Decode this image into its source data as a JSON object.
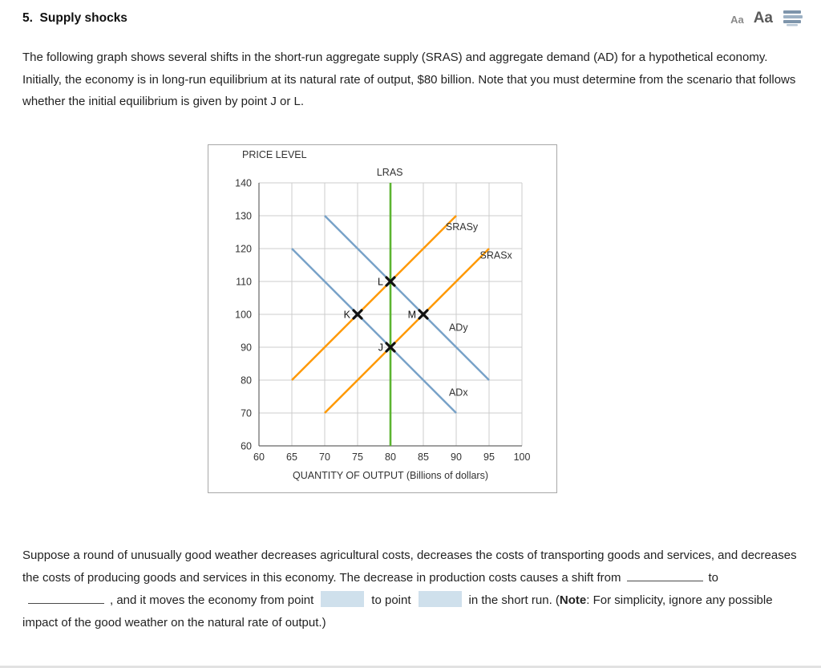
{
  "header": {
    "title": "5.  Supply shocks",
    "font_small_label": "Aa",
    "font_large_label": "Aa",
    "icons": {
      "print": "print-icon"
    }
  },
  "intro": "The following graph shows several shifts in the short-run aggregate supply (SRAS) and aggregate demand (AD) for a hypothetical economy. Initially, the economy is in long-run equilibrium at its natural rate of output, $80 billion. Note that you must determine from the scenario that follows whether the initial equilibrium is given by point J or L.",
  "chart_data": {
    "type": "line",
    "title": "",
    "ylabel": "PRICE LEVEL",
    "xlabel": "QUANTITY OF OUTPUT (Billions of dollars)",
    "xlim": [
      60,
      100
    ],
    "ylim": [
      60,
      140
    ],
    "xticks": [
      60,
      65,
      70,
      75,
      80,
      85,
      90,
      95,
      100
    ],
    "yticks": [
      60,
      70,
      80,
      90,
      100,
      110,
      120,
      130,
      140
    ],
    "grid": true,
    "colors": {
      "lras": "#5cb431",
      "sras": "#ff9900",
      "ad": "#78a2c8",
      "grid": "#cccccc",
      "axis": "#666666",
      "marker": "#111111"
    },
    "series": [
      {
        "name": "LRAS",
        "color": "#5cb431",
        "width": 2.6,
        "points": [
          [
            80,
            60
          ],
          [
            80,
            140
          ]
        ],
        "label": {
          "text": "LRAS",
          "x": 79.9,
          "y": 142.2,
          "anchor": "middle"
        }
      },
      {
        "name": "SRASy",
        "color": "#ff9900",
        "width": 2.5,
        "points": [
          [
            65,
            80
          ],
          [
            90,
            130
          ]
        ],
        "label": {
          "text": "SRASy",
          "x": 88.4,
          "y": 125.6,
          "anchor": "start"
        }
      },
      {
        "name": "SRASx",
        "color": "#ff9900",
        "width": 2.5,
        "points": [
          [
            70,
            70
          ],
          [
            95,
            120
          ]
        ],
        "label": {
          "text": "SRASx",
          "x": 93.6,
          "y": 117.0,
          "anchor": "start"
        }
      },
      {
        "name": "ADy",
        "color": "#78a2c8",
        "width": 2.5,
        "points": [
          [
            70,
            130
          ],
          [
            95,
            80
          ]
        ],
        "label": {
          "text": "ADy",
          "x": 88.9,
          "y": 95.0,
          "anchor": "start"
        }
      },
      {
        "name": "ADx",
        "color": "#78a2c8",
        "width": 2.5,
        "points": [
          [
            65,
            120
          ],
          [
            90,
            70
          ]
        ],
        "label": {
          "text": "ADx",
          "x": 88.9,
          "y": 75.2,
          "anchor": "start"
        }
      }
    ],
    "points": [
      {
        "label": "K",
        "x": 75,
        "y": 100
      },
      {
        "label": "L",
        "x": 80,
        "y": 110
      },
      {
        "label": "M",
        "x": 85,
        "y": 100
      },
      {
        "label": "J",
        "x": 80,
        "y": 90
      }
    ]
  },
  "question": {
    "s1": "Suppose a round of unusually good weather decreases agricultural costs, decreases the costs of transporting goods and services, and decreases the costs of producing goods and services in this economy. The decrease in production costs causes a shift from",
    "s2": "to",
    "s3": ", and it moves the economy from point",
    "s4": "to point",
    "s5": "in the short run. (",
    "note": "Note",
    "s6": ": For simplicity, ignore any possible impact of the good weather on the natural rate of output.)"
  }
}
